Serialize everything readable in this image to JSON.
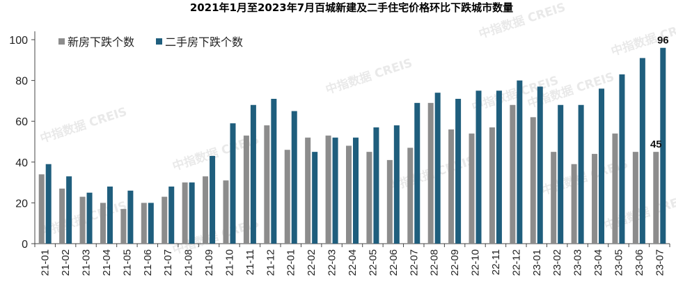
{
  "chart_data": {
    "type": "bar",
    "title": "2021年1月至2023年7月百城新建及二手住宅价格环比下跌城市数量",
    "categories": [
      "21-01",
      "21-02",
      "21-03",
      "21-04",
      "21-05",
      "21-06",
      "21-07",
      "21-08",
      "21-09",
      "21-10",
      "21-11",
      "21-12",
      "22-01",
      "22-02",
      "22-03",
      "22-04",
      "22-05",
      "22-06",
      "22-07",
      "22-08",
      "22-09",
      "22-10",
      "22-11",
      "22-12",
      "23-01",
      "23-02",
      "23-03",
      "23-04",
      "23-05",
      "23-06",
      "23-07"
    ],
    "series": [
      {
        "name": "新房下跌个数",
        "color": "#8c8c8c",
        "values": [
          34,
          27,
          23,
          20,
          17,
          20,
          23,
          30,
          33,
          31,
          53,
          58,
          46,
          52,
          53,
          48,
          45,
          41,
          47,
          69,
          56,
          54,
          57,
          68,
          62,
          45,
          39,
          44,
          54,
          45,
          45
        ]
      },
      {
        "name": "二手房下跌个数",
        "color": "#1f5e7d",
        "values": [
          39,
          33,
          25,
          28,
          26,
          20,
          28,
          30,
          43,
          59,
          68,
          71,
          65,
          45,
          52,
          52,
          57,
          58,
          69,
          74,
          71,
          75,
          75,
          80,
          77,
          68,
          68,
          76,
          83,
          91,
          96
        ]
      }
    ],
    "ylim": [
      0,
      100
    ],
    "yticks": [
      0,
      20,
      40,
      60,
      80,
      100
    ],
    "grid": false,
    "legend": "top-left",
    "annotations": [
      {
        "series": 1,
        "index": 30,
        "text": "96"
      },
      {
        "series": 0,
        "index": 30,
        "text": "45"
      }
    ],
    "watermark": "中指数据 CREIS"
  }
}
